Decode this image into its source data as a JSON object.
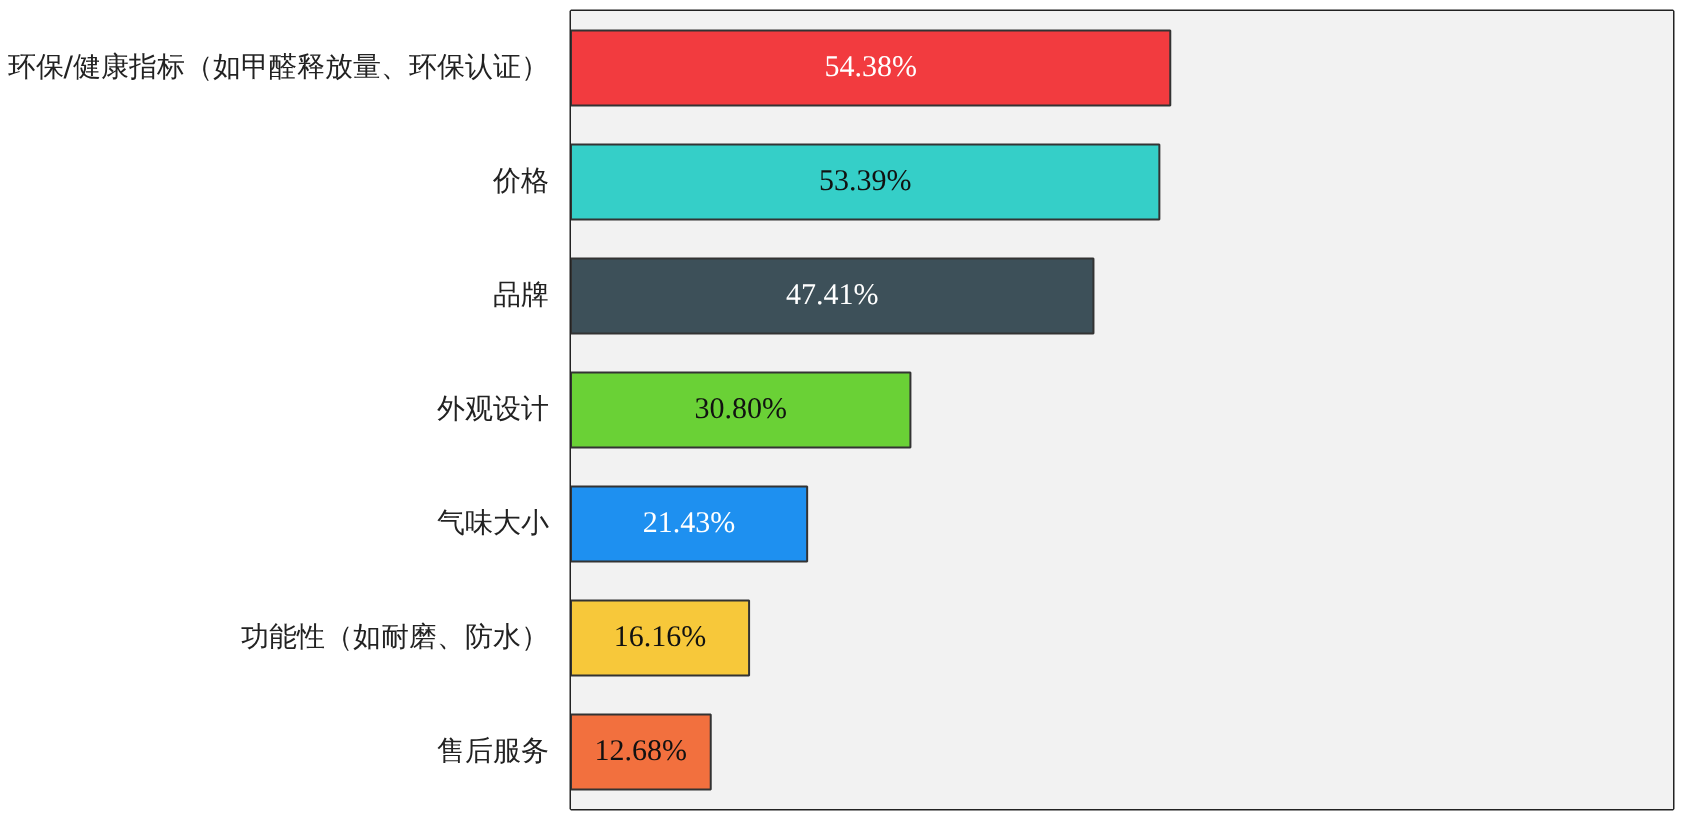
{
  "chart_data": {
    "type": "bar",
    "orientation": "horizontal",
    "categories": [
      "环保/健康指标（如甲醛释放量、环保认证）",
      "价格",
      "品牌",
      "外观设计",
      "气味大小",
      "功能性（如耐磨、防水）",
      "售后服务"
    ],
    "values": [
      54.38,
      53.39,
      47.41,
      30.8,
      21.43,
      16.16,
      12.68
    ],
    "colors": [
      "#f23b3f",
      "#35cfc8",
      "#3d5059",
      "#6ad136",
      "#1e90f0",
      "#f7c83a",
      "#f2703e"
    ],
    "value_labels": [
      "54.38%",
      "53.39%",
      "47.41%",
      "30.80%",
      "21.43%",
      "16.16%",
      "12.68%"
    ],
    "xlim": [
      0,
      100
    ],
    "bands": [
      {
        "axis": "x",
        "from": 0,
        "to": 100,
        "color": "#f2f2f2"
      }
    ],
    "tick_labels": "y"
  }
}
